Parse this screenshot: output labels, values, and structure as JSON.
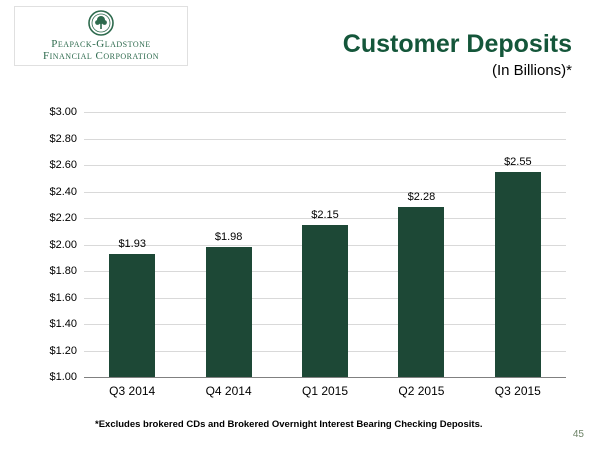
{
  "header": {
    "logo": {
      "line1": "Peapack-Gladstone",
      "line2": "Financial Corporation"
    },
    "title": "Customer Deposits",
    "subtitle": "(In Billions)*"
  },
  "chart_data": {
    "type": "bar",
    "title": "Customer Deposits (In Billions)",
    "categories": [
      "Q3 2014",
      "Q4 2014",
      "Q1 2015",
      "Q2 2015",
      "Q3 2015"
    ],
    "values": [
      1.93,
      1.98,
      2.15,
      2.28,
      2.55
    ],
    "value_labels": [
      "$1.93",
      "$1.98",
      "$2.15",
      "$2.28",
      "$2.55"
    ],
    "ylim": [
      1.0,
      3.0
    ],
    "ytick_step": 0.2,
    "yticks": [
      "$1.00",
      "$1.20",
      "$1.40",
      "$1.60",
      "$1.80",
      "$2.00",
      "$2.20",
      "$2.40",
      "$2.60",
      "$2.80",
      "$3.00"
    ],
    "bar_color": "#1d4836",
    "grid": true,
    "legend_position": "none",
    "xlabel": "",
    "ylabel": ""
  },
  "footnote": "*Excludes brokered CDs and Brokered Overnight Interest Bearing Checking Deposits.",
  "page_number": "45",
  "colors": {
    "title_green": "#14563a",
    "bar_green": "#1d4836",
    "logo_green": "#2d6a4d",
    "gridline_gray": "#d9d9d9"
  }
}
